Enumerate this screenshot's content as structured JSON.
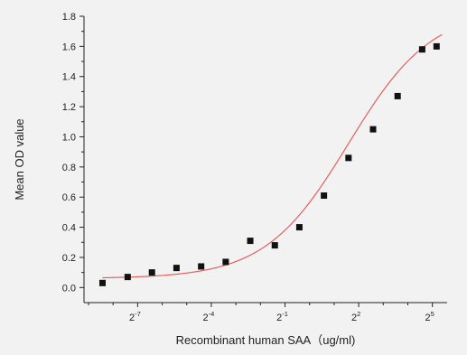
{
  "chart_data": {
    "type": "scatter",
    "title": "",
    "xlabel": "Recombinant human  SAA（ug/ml)",
    "ylabel": "Mean OD value",
    "x_scale": "log2",
    "xlim": [
      0.00172,
      48.5
    ],
    "ylim": [
      -0.1,
      1.8
    ],
    "y_ticks": [
      0.0,
      0.2,
      0.4,
      0.6,
      0.8,
      1.0,
      1.2,
      1.4,
      1.6,
      1.8
    ],
    "y_tick_labels": [
      "0.0",
      "0.2",
      "0.4",
      "0.6",
      "0.8",
      "1.0",
      "1.2",
      "1.4",
      "1.6",
      "1.8"
    ],
    "x_ticks": [
      0.0078125,
      0.0625,
      0.5,
      4,
      32
    ],
    "x_tick_labels": [
      {
        "base": "2",
        "exp": "-7"
      },
      {
        "base": "2",
        "exp": "-4"
      },
      {
        "base": "2",
        "exp": "-1"
      },
      {
        "base": "2",
        "exp": "2"
      },
      {
        "base": "2",
        "exp": "5"
      }
    ],
    "grid": false,
    "colors": {
      "points": "#111111",
      "fit_curve": "#e06060",
      "axes": "#222222",
      "background": "#f2f2f2"
    },
    "series": [
      {
        "marker": "square",
        "x": [
          0.0029,
          0.0059,
          0.0117,
          0.0234,
          0.0469,
          0.0938,
          0.1875,
          0.375,
          0.75,
          1.5,
          3,
          6,
          12,
          24,
          36
        ],
        "y": [
          0.03,
          0.07,
          0.1,
          0.13,
          0.14,
          0.17,
          0.31,
          0.28,
          0.4,
          0.61,
          0.86,
          1.05,
          1.27,
          1.58,
          1.6
        ]
      }
    ],
    "fit_curve": {
      "type": "four-parameter-logistic",
      "bottom": 0.06,
      "top": 1.85,
      "ec50": 3.0,
      "hill": 0.85,
      "x_range": [
        0.0029,
        42
      ]
    }
  }
}
